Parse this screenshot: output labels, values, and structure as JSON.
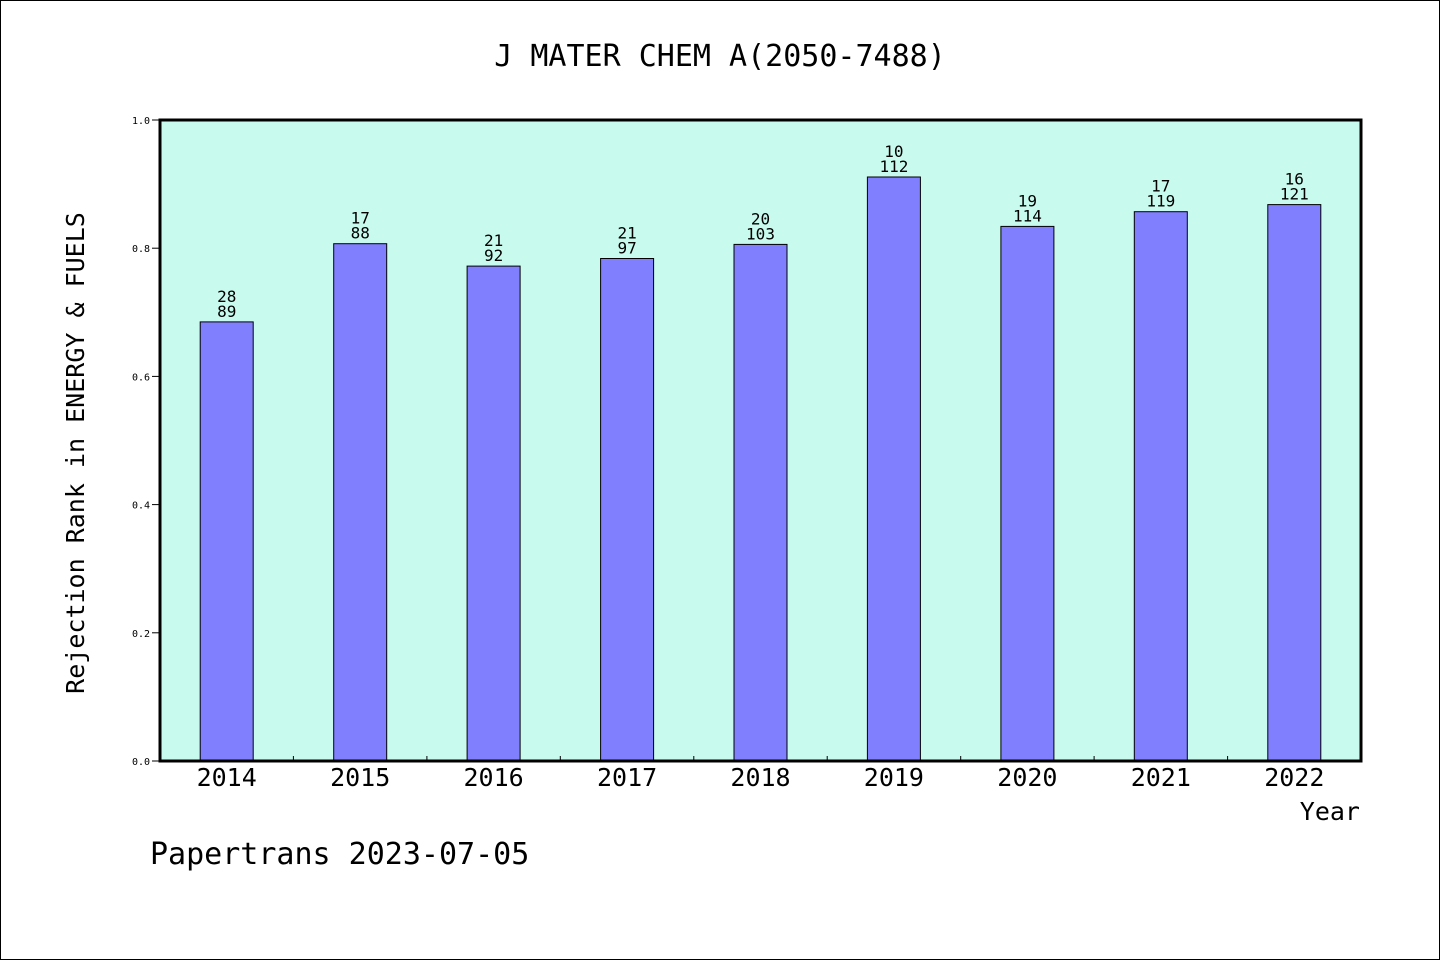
{
  "chart_data": {
    "type": "bar",
    "title": "J MATER CHEM A(2050-7488)",
    "xlabel": "Year",
    "ylabel": "Rejection Rank in ENERGY & FUELS",
    "categories": [
      "2014",
      "2015",
      "2016",
      "2017",
      "2018",
      "2019",
      "2020",
      "2021",
      "2022"
    ],
    "values": [
      0.685,
      0.807,
      0.772,
      0.784,
      0.806,
      0.911,
      0.834,
      0.857,
      0.868
    ],
    "rank_labels": [
      "28",
      "17",
      "21",
      "21",
      "20",
      "10",
      "19",
      "17",
      "16"
    ],
    "total_labels": [
      "89",
      "88",
      "92",
      "97",
      "103",
      "112",
      "114",
      "119",
      "121"
    ],
    "ylim": [
      0,
      1.0
    ],
    "yticks": [
      "0.0",
      "0.2",
      "0.4",
      "0.6",
      "0.8",
      "1.0"
    ],
    "grid": false,
    "legend": "none",
    "plot_background": "#c8faee",
    "bar_color": "#8080ff"
  },
  "footer": "Papertrans 2023-07-05"
}
